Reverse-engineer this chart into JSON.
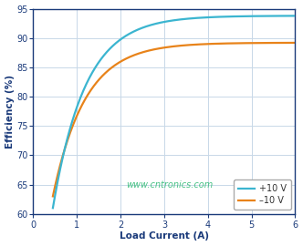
{
  "title": "",
  "xlabel": "Load Current (A)",
  "ylabel": "Efficiency (%)",
  "xlim": [
    0,
    6
  ],
  "ylim": [
    60,
    95
  ],
  "xticks": [
    0,
    1,
    2,
    3,
    4,
    5,
    6
  ],
  "yticks": [
    60,
    65,
    70,
    75,
    80,
    85,
    90,
    95
  ],
  "legend": [
    "+10 V",
    "–10 V"
  ],
  "line1_color": "#3BB5D0",
  "line2_color": "#E8831A",
  "watermark": "www.cntronics.com",
  "watermark_color": "#33BB77",
  "background_color": "#ffffff",
  "grid_color": "#c8d8e8",
  "label_color": "#1a3a7a",
  "tick_color": "#1a3a7a"
}
